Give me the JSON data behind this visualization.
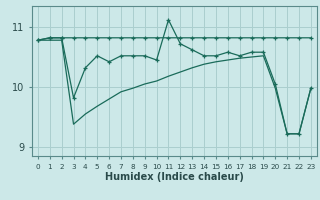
{
  "xlabel": "Humidex (Indice chaleur)",
  "bg_color": "#cce8e8",
  "grid_color": "#aacece",
  "line_color": "#1a6b5a",
  "x_values": [
    0,
    1,
    2,
    3,
    4,
    5,
    6,
    7,
    8,
    9,
    10,
    11,
    12,
    13,
    14,
    15,
    16,
    17,
    18,
    19,
    20,
    21,
    22,
    23
  ],
  "line1": [
    10.78,
    10.82,
    10.82,
    10.82,
    10.82,
    10.82,
    10.82,
    10.82,
    10.82,
    10.82,
    10.82,
    10.82,
    10.82,
    10.82,
    10.82,
    10.82,
    10.82,
    10.82,
    10.82,
    10.82,
    10.82,
    10.82,
    10.82,
    10.82
  ],
  "line2": [
    10.78,
    10.82,
    10.82,
    9.82,
    10.32,
    10.52,
    10.42,
    10.52,
    10.52,
    10.52,
    10.45,
    11.12,
    10.72,
    10.62,
    10.52,
    10.52,
    10.58,
    10.52,
    10.58,
    10.58,
    10.05,
    9.22,
    9.22,
    9.98
  ],
  "line3": [
    10.78,
    10.78,
    10.78,
    9.38,
    9.55,
    9.68,
    9.8,
    9.92,
    9.98,
    10.05,
    10.1,
    10.18,
    10.25,
    10.32,
    10.38,
    10.42,
    10.45,
    10.48,
    10.5,
    10.52,
    9.98,
    9.22,
    9.22,
    9.98
  ],
  "ylim": [
    8.85,
    11.35
  ],
  "xlim": [
    -0.5,
    23.5
  ],
  "yticks": [
    9,
    10,
    11
  ],
  "xticks": [
    0,
    1,
    2,
    3,
    4,
    5,
    6,
    7,
    8,
    9,
    10,
    11,
    12,
    13,
    14,
    15,
    16,
    17,
    18,
    19,
    20,
    21,
    22,
    23
  ]
}
